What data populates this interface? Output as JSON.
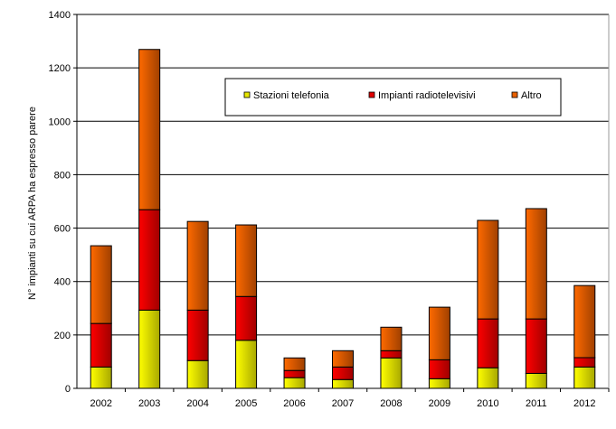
{
  "chart_data": {
    "type": "bar",
    "stacked": true,
    "categories": [
      "2002",
      "2003",
      "2004",
      "2005",
      "2006",
      "2007",
      "2008",
      "2009",
      "2010",
      "2011",
      "2012"
    ],
    "series": [
      {
        "name": "Stazioni telefonia",
        "color": "#e6e600",
        "values": [
          80,
          293,
          104,
          180,
          40,
          33,
          114,
          36,
          77,
          56,
          80
        ]
      },
      {
        "name": "Impianti radiotelevisivi",
        "color": "#e00000",
        "values": [
          163,
          376,
          189,
          164,
          27,
          47,
          27,
          71,
          183,
          204,
          35
        ]
      },
      {
        "name": "Altro",
        "color": "#e86000",
        "values": [
          291,
          600,
          332,
          268,
          47,
          61,
          88,
          197,
          369,
          413,
          270
        ]
      }
    ],
    "ylabel": "N° impianti su cui ARPA ha espresso parere",
    "xlabel": "",
    "ylim": [
      0,
      1400
    ],
    "yticks": [
      "0",
      "200",
      "400",
      "600",
      "800",
      "1000",
      "1200",
      "1400"
    ],
    "grid": true,
    "legend": "top-center"
  }
}
